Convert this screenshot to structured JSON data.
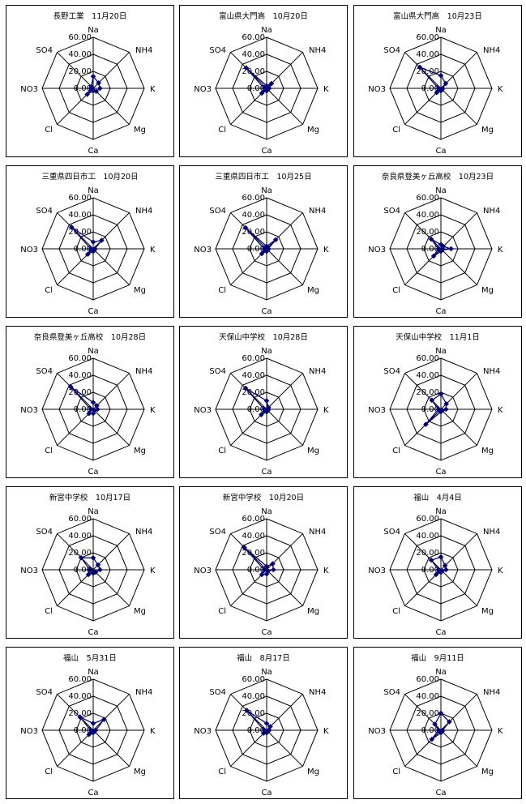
{
  "axes": [
    "Na",
    "NH4",
    "K",
    "Mg",
    "Ca",
    "Cl",
    "NO3",
    "SO4"
  ],
  "tick_labels": [
    "0.00",
    "20.00",
    "40.00",
    "60.00"
  ],
  "series_color": "#000080",
  "chart_data": [
    {
      "type": "radar",
      "title": "長野工業　11月20日",
      "rlim": [
        0,
        60
      ],
      "grid": true,
      "values": {
        "Na": 14,
        "NH4": 9,
        "K": 8,
        "Mg": 5,
        "Ca": 3,
        "Cl": 10,
        "NO3": 3,
        "SO4": 3
      }
    },
    {
      "type": "radar",
      "title": "富山県大門高　10月20日",
      "rlim": [
        0,
        60
      ],
      "grid": true,
      "values": {
        "Na": 3,
        "NH4": 8,
        "K": 3,
        "Mg": 2,
        "Ca": 3,
        "Cl": 8,
        "NO3": 3,
        "SO4": 34
      }
    },
    {
      "type": "radar",
      "title": "富山県大門高　10月23日",
      "rlim": [
        0,
        60
      ],
      "grid": true,
      "values": {
        "Na": 15,
        "NH4": 8,
        "K": 2,
        "Mg": 2,
        "Ca": 3,
        "Cl": 7,
        "NO3": 3,
        "SO4": 35
      }
    },
    {
      "type": "radar",
      "title": "三重県四日市工　10月20日",
      "rlim": [
        0,
        60
      ],
      "grid": true,
      "values": {
        "Na": 8,
        "NH4": 14,
        "K": 2,
        "Mg": 2,
        "Ca": 3,
        "Cl": 9,
        "NO3": 3,
        "SO4": 36
      }
    },
    {
      "type": "radar",
      "title": "三重県四日市工　10月25日",
      "rlim": [
        0,
        60
      ],
      "grid": true,
      "values": {
        "Na": 3,
        "NH4": 15,
        "K": 2,
        "Mg": 2,
        "Ca": 3,
        "Cl": 8,
        "NO3": 3,
        "SO4": 35
      }
    },
    {
      "type": "radar",
      "title": "奈良県登美ヶ丘高校　10月23日",
      "rlim": [
        0,
        60
      ],
      "grid": true,
      "values": {
        "Na": 5,
        "NH4": 4,
        "K": 12,
        "Mg": 2,
        "Ca": 3,
        "Cl": 12,
        "NO3": 3,
        "SO4": 16
      }
    },
    {
      "type": "radar",
      "title": "奈良県登美ヶ丘高校　10月28日",
      "rlim": [
        0,
        60
      ],
      "grid": true,
      "values": {
        "Na": 8,
        "NH4": 6,
        "K": 5,
        "Mg": 2,
        "Ca": 5,
        "Cl": 7,
        "NO3": 3,
        "SO4": 37
      }
    },
    {
      "type": "radar",
      "title": "天保山中学校　10月28日",
      "rlim": [
        0,
        60
      ],
      "grid": true,
      "values": {
        "Na": 10,
        "NH4": 3,
        "K": 2,
        "Mg": 2,
        "Ca": 3,
        "Cl": 9,
        "NO3": 3,
        "SO4": 35
      }
    },
    {
      "type": "radar",
      "title": "天保山中学校　11月1日",
      "rlim": [
        0,
        60
      ],
      "grid": true,
      "values": {
        "Na": 18,
        "NH4": 9,
        "K": 6,
        "Mg": 2,
        "Ca": 3,
        "Cl": 25,
        "NO3": 3,
        "SO4": 15
      }
    },
    {
      "type": "radar",
      "title": "新宮中学校　10月17日",
      "rlim": [
        0,
        60
      ],
      "grid": true,
      "values": {
        "Na": 14,
        "NH4": 8,
        "K": 8,
        "Mg": 4,
        "Ca": 4,
        "Cl": 8,
        "NO3": 4,
        "SO4": 20
      }
    },
    {
      "type": "radar",
      "title": "新宮中学校　10月20日",
      "rlim": [
        0,
        60
      ],
      "grid": true,
      "values": {
        "Na": 4,
        "NH4": 10,
        "K": 8,
        "Mg": 2,
        "Ca": 5,
        "Cl": 8,
        "NO3": 3,
        "SO4": 37
      }
    },
    {
      "type": "radar",
      "title": "福山　4月4日",
      "rlim": [
        0,
        60
      ],
      "grid": true,
      "values": {
        "Na": 15,
        "NH4": 7,
        "K": 6,
        "Mg": 2,
        "Ca": 3,
        "Cl": 8,
        "NO3": 3,
        "SO4": 16
      }
    },
    {
      "type": "radar",
      "title": "福山　5月31日",
      "rlim": [
        0,
        60
      ],
      "grid": true,
      "values": {
        "Na": 8,
        "NH4": 18,
        "K": 3,
        "Mg": 2,
        "Ca": 3,
        "Cl": 7,
        "NO3": 3,
        "SO4": 22
      }
    },
    {
      "type": "radar",
      "title": "福山　8月17日",
      "rlim": [
        0,
        60
      ],
      "grid": true,
      "values": {
        "Na": 8,
        "NH4": 6,
        "K": 3,
        "Mg": 2,
        "Ca": 3,
        "Cl": 5,
        "NO3": 3,
        "SO4": 33
      }
    },
    {
      "type": "radar",
      "title": "福山　9月11日",
      "rlim": [
        0,
        60
      ],
      "grid": true,
      "values": {
        "Na": 20,
        "NH4": 14,
        "K": 2,
        "Mg": 2,
        "Ca": 3,
        "Cl": 15,
        "NO3": 3,
        "SO4": 10
      }
    }
  ]
}
